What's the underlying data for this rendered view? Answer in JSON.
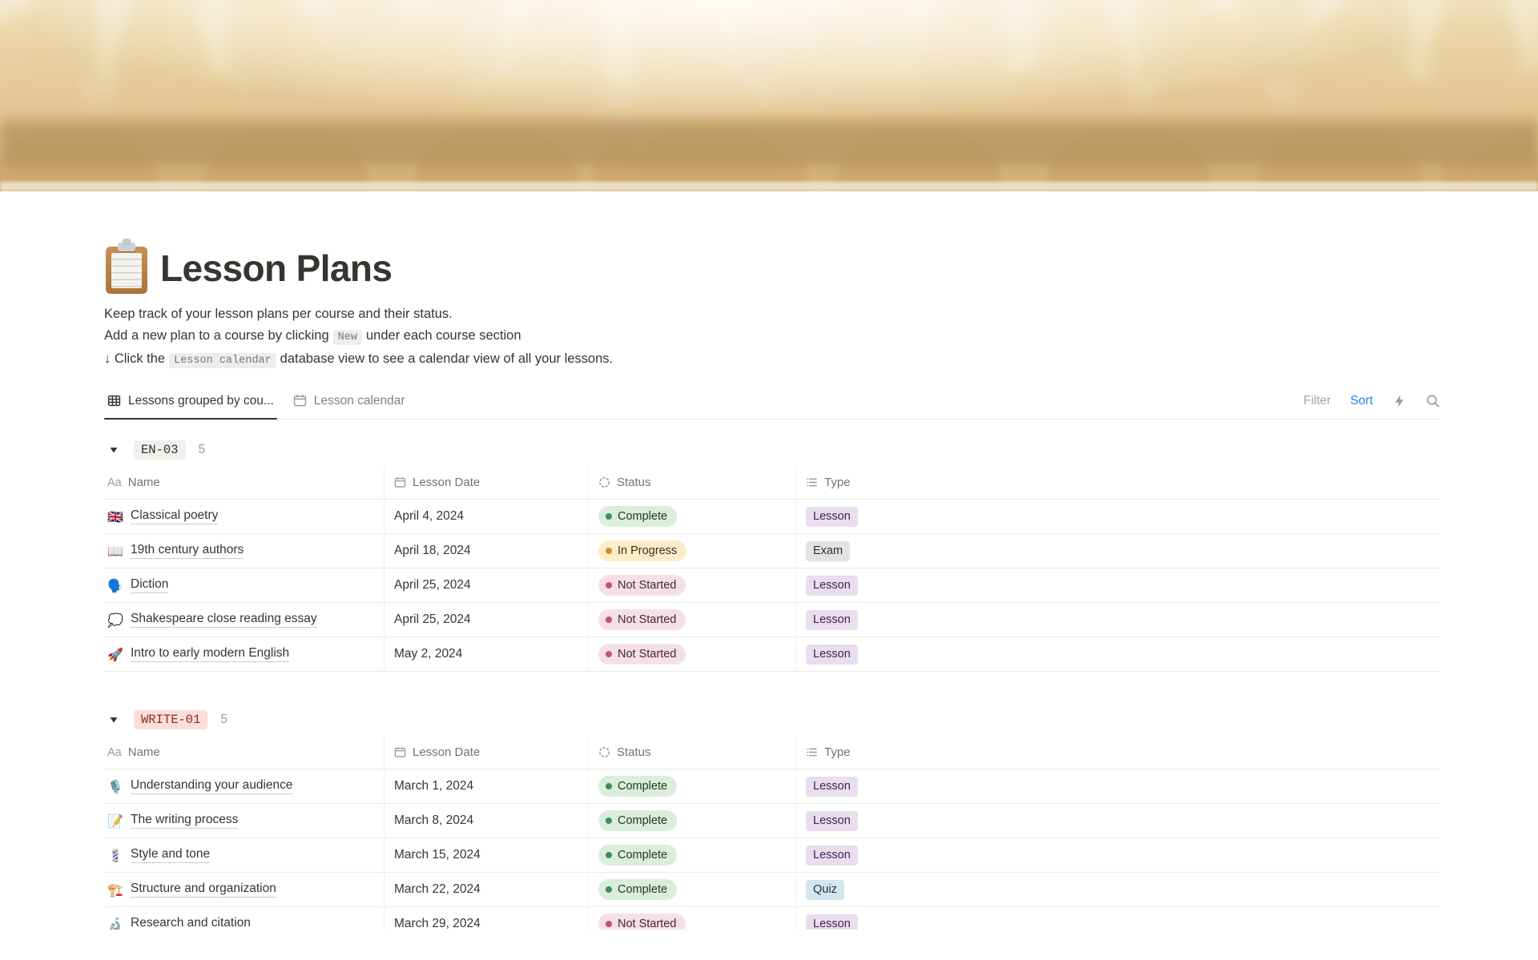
{
  "page": {
    "title": "Lesson Plans",
    "icon": "clipboard"
  },
  "description": {
    "line1": "Keep track of your lesson plans per course and their status.",
    "line2_before": "Add a new plan to a course by clicking",
    "line2_chip": "New",
    "line2_after": "under each course section",
    "line3_before": "↓ Click the",
    "line3_chip": "Lesson calendar",
    "line3_after": "database view to see a calendar view of all your lessons."
  },
  "tabs": [
    {
      "icon": "table-icon",
      "label": "Lessons grouped by cou...",
      "active": true
    },
    {
      "icon": "calendar-icon",
      "label": "Lesson calendar",
      "active": false
    }
  ],
  "toolbar": {
    "filter_label": "Filter",
    "sort_label": "Sort",
    "icons": [
      "lightning-icon",
      "search-icon"
    ]
  },
  "table_columns": [
    {
      "icon": "text-property-icon",
      "label": "Name"
    },
    {
      "icon": "calendar-icon",
      "label": "Lesson Date"
    },
    {
      "icon": "status-icon",
      "label": "Status"
    },
    {
      "icon": "list-icon",
      "label": "Type"
    }
  ],
  "groups": [
    {
      "name": "EN-03",
      "count": "5",
      "color": "gray",
      "rows": [
        {
          "emoji": "🇬🇧",
          "name": "Classical poetry",
          "date": "April 4, 2024",
          "status": "Complete",
          "type": "Lesson"
        },
        {
          "emoji": "📖",
          "name": "19th century authors",
          "date": "April 18, 2024",
          "status": "In Progress",
          "type": "Exam"
        },
        {
          "emoji": "🗣️",
          "name": "Diction",
          "date": "April 25, 2024",
          "status": "Not Started",
          "type": "Lesson"
        },
        {
          "emoji": "💭",
          "name": "Shakespeare close reading essay",
          "date": "April 25, 2024",
          "status": "Not Started",
          "type": "Lesson"
        },
        {
          "emoji": "🚀",
          "name": "Intro to early modern English",
          "date": "May 2, 2024",
          "status": "Not Started",
          "type": "Lesson"
        }
      ]
    },
    {
      "name": "WRITE-01",
      "count": "5",
      "color": "red",
      "rows": [
        {
          "emoji": "🎙️",
          "name": "Understanding your audience",
          "date": "March 1, 2024",
          "status": "Complete",
          "type": "Lesson"
        },
        {
          "emoji": "📝",
          "name": "The writing process",
          "date": "March 8, 2024",
          "status": "Complete",
          "type": "Lesson"
        },
        {
          "emoji": "💈",
          "name": "Style and tone",
          "date": "March 15, 2024",
          "status": "Complete",
          "type": "Lesson"
        },
        {
          "emoji": "🏗️",
          "name": "Structure and organization",
          "date": "March 22, 2024",
          "status": "Complete",
          "type": "Quiz"
        },
        {
          "emoji": "🔬",
          "name": "Research and citation",
          "date": "March 29, 2024",
          "status": "Not Started",
          "type": "Lesson"
        }
      ]
    }
  ],
  "colors": {
    "accent_sort": "#2383E2",
    "complete_bg": "#DBEDDB",
    "complete_dot": "#438A5E",
    "complete_text": "#1C3829",
    "in_progress_bg": "#FDECC8",
    "in_progress_dot": "#CB912F",
    "in_progress_text": "#402C1B",
    "not_started_bg": "#F6E0E8",
    "not_started_dot": "#C74C8A",
    "not_started_text": "#4C2337",
    "lesson_bg": "#E8DEEE",
    "lesson_text": "#412454",
    "exam_bg": "#E3E2E0",
    "exam_text": "#32302C",
    "quiz_bg": "#D3E5EF",
    "quiz_text": "#183347",
    "group_en03_bg": "#F1F0EC",
    "group_en03_text": "#32302C",
    "group_write01_bg": "#FBDDD9",
    "group_write01_text": "#8A2E26"
  }
}
